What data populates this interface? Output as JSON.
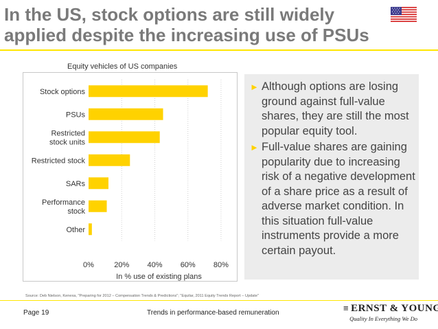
{
  "header": {
    "title_line1": "In the US, stock options are still widely",
    "title_line2": "applied despite the increasing use of PSUs"
  },
  "flag_icon": "us-flag-icon",
  "chart_data": {
    "type": "bar",
    "orientation": "horizontal",
    "title": "Equity vehicles of US companies",
    "xlabel": "In % use of existing plans",
    "ylabel": "",
    "categories": [
      "Stock options",
      "PSUs",
      "Restricted stock units",
      "Restricted stock",
      "SARs",
      "Performance stock",
      "Other"
    ],
    "category_lines": [
      [
        "Stock options"
      ],
      [
        "PSUs"
      ],
      [
        "Restricted",
        "stock units"
      ],
      [
        "Restricted stock"
      ],
      [
        "SARs"
      ],
      [
        "Performance",
        "stock"
      ],
      [
        "Other"
      ]
    ],
    "values": [
      72,
      45,
      43,
      25,
      12,
      11,
      2
    ],
    "xlim": [
      0,
      85
    ],
    "xticks": [
      0,
      20,
      40,
      60,
      80
    ],
    "xtick_labels": [
      "0%",
      "20%",
      "40%",
      "60%",
      "80%"
    ],
    "grid": true,
    "bar_color": "#ffd200"
  },
  "bullets": [
    {
      "text": "Although options are losing ground against full-value shares, they are still the most popular equity tool."
    },
    {
      "text": "Full-value shares are gaining popularity due to increasing risk of a negative development of a share price as a result of adverse market condition. In this situation full-value instruments provide a more certain payout."
    }
  ],
  "source": "Source: Deb Nielson, Kenexa, \"Preparing for 2012 – Compensation Trends & Predictions\"; \"Equilar, 2011 Equity Trends Report – Update\"",
  "footer": {
    "page": "Page 19",
    "center": "Trends in performance-based remuneration",
    "logo_brand": "ERNST & YOUNG",
    "logo_tagline": "Quality In Everything We Do"
  },
  "colors": {
    "accent": "#ffe600",
    "bar": "#ffd200",
    "title": "#7a7a7a",
    "panel": "#ececec"
  }
}
